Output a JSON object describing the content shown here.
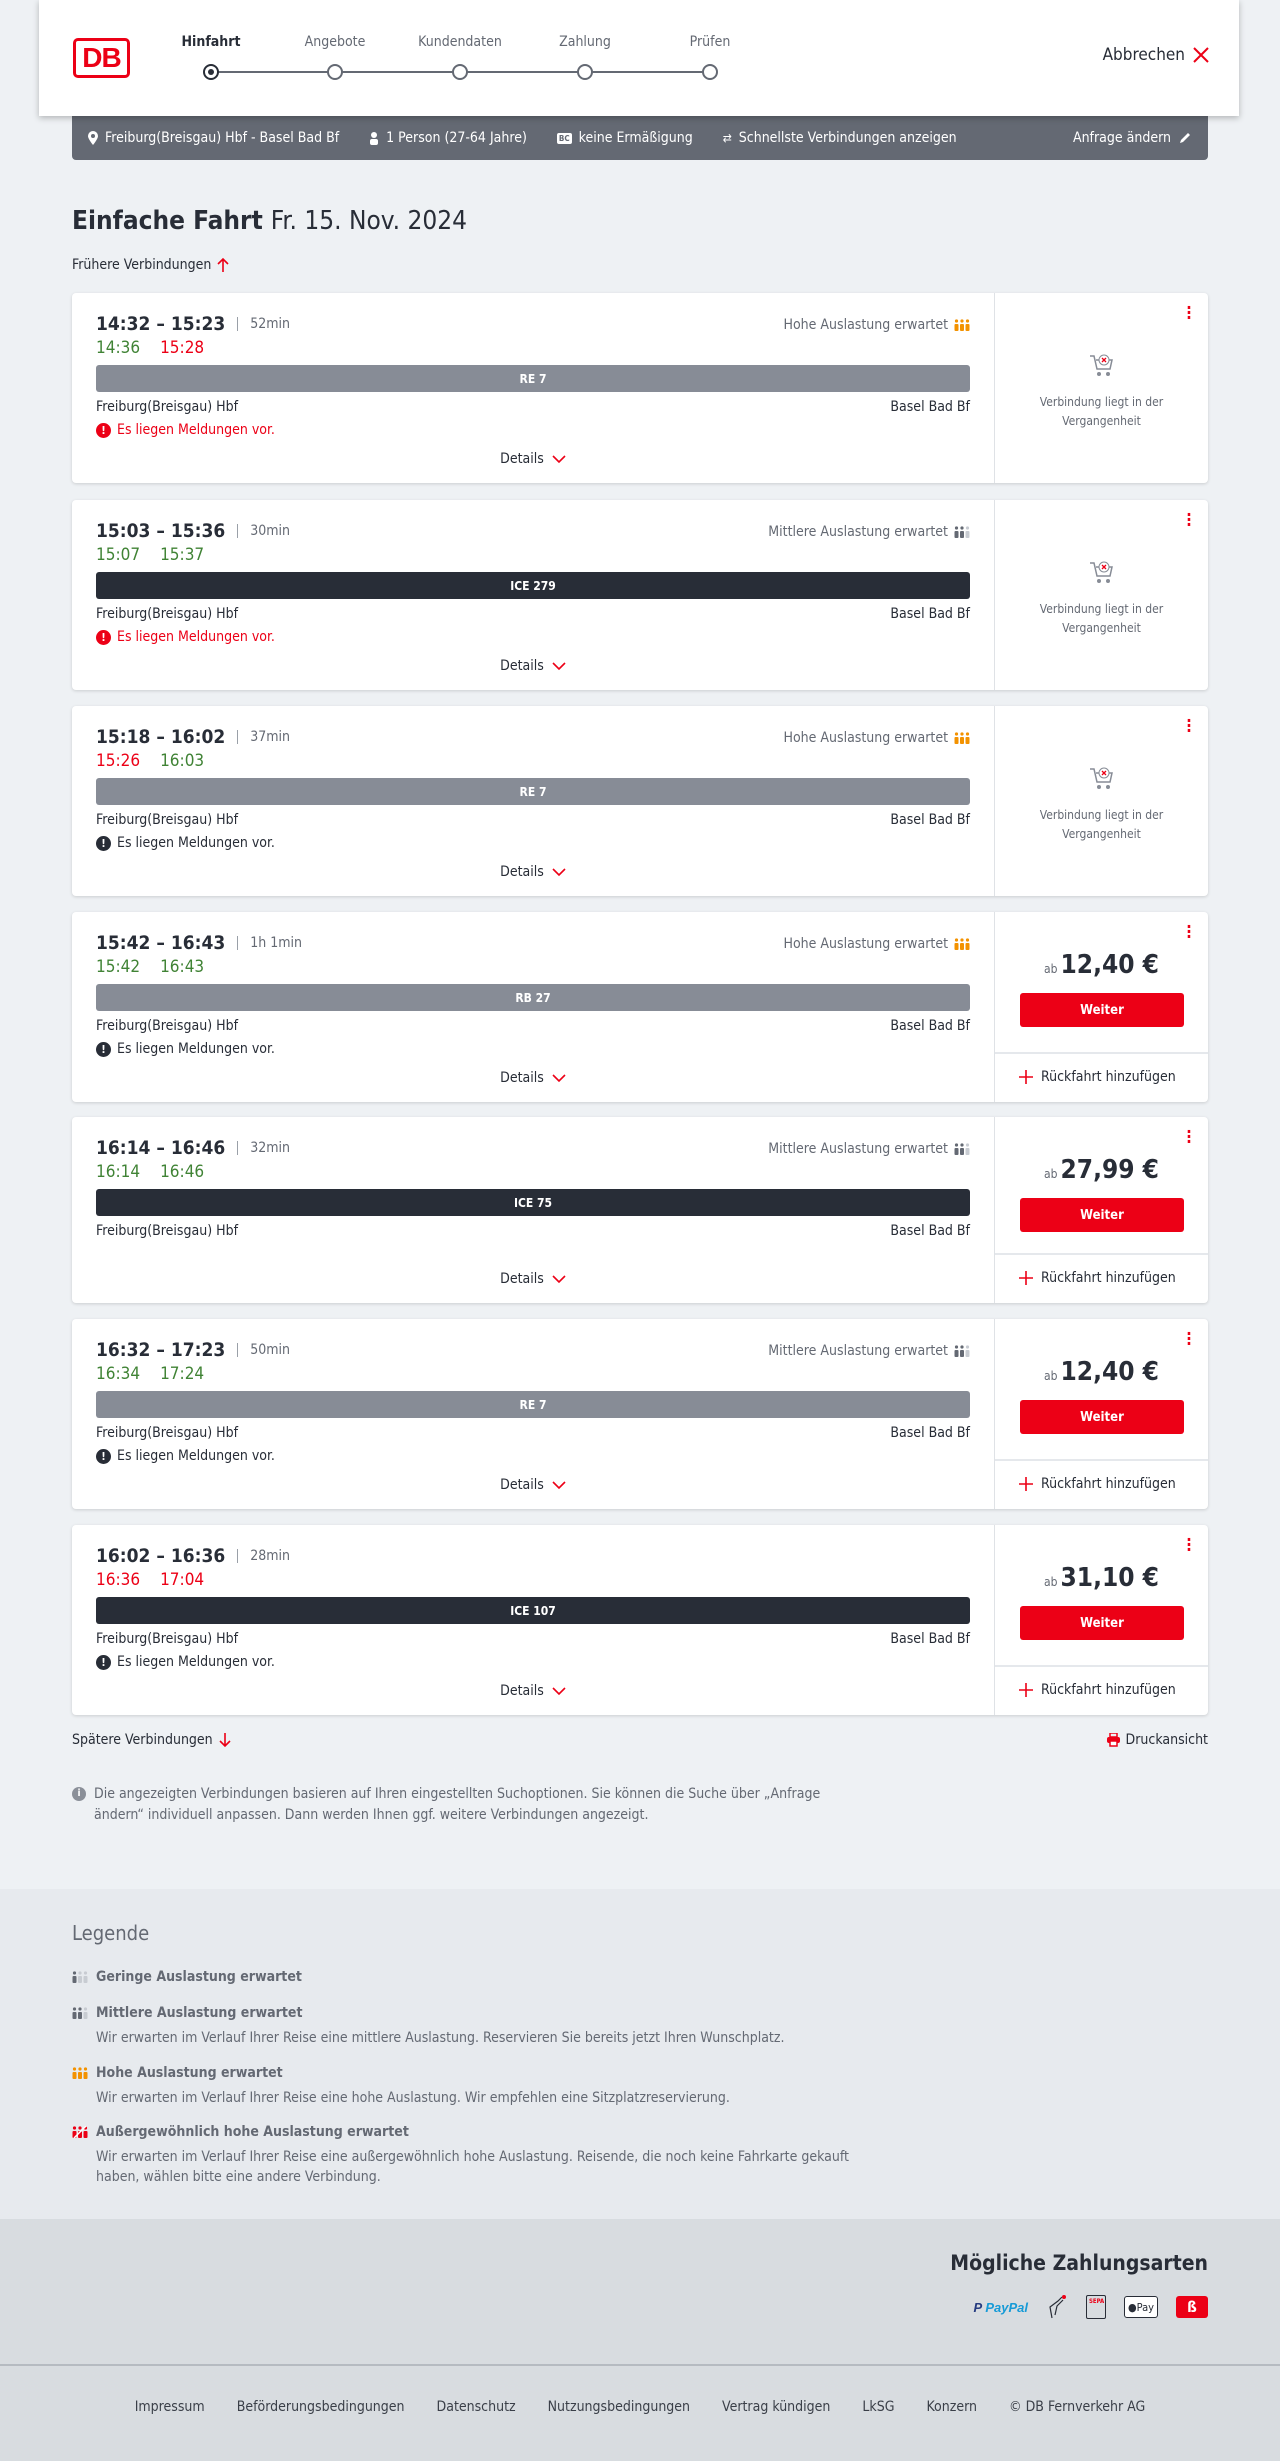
{
  "header": {
    "logo": "DB",
    "steps": [
      "Hinfahrt",
      "Angebote",
      "Kundendaten",
      "Zahlung",
      "Prüfen"
    ],
    "active_step": 0,
    "cancel": "Abbrechen"
  },
  "infobar": {
    "route": "Freiburg(Breisgau) Hbf - Basel Bad Bf",
    "travellers": "1 Person (27-64 Jahre)",
    "discount_badge": "BC",
    "discount": "keine Ermäßigung",
    "fastest": "Schnellste Verbindungen anzeigen",
    "change": "Anfrage ändern"
  },
  "title": {
    "type": "Einfache Fahrt",
    "date": "Fr. 15. Nov. 2024"
  },
  "earlier": "Frühere Verbindungen",
  "later": "Spätere Verbindungen",
  "print": "Druckansicht",
  "labels": {
    "details": "Details",
    "weiter": "Weiter",
    "return": "Rückfahrt hinzufügen",
    "past_line1": "Verbindung liegt in der",
    "past_line2": "Vergangenheit",
    "price_prefix": "ab",
    "from": "Freiburg(Breisgau) Hbf",
    "to": "Basel Bad Bf"
  },
  "colors": {
    "accent": "#ec0016",
    "on_time": "#408335",
    "late": "#ec0016",
    "regional_bar": "#878c96",
    "ice_bar": "#282d37",
    "load_high": "#f39200",
    "load_medium": "#646973"
  },
  "connections": [
    {
      "times": "14:32 – 15:23",
      "duration": "52min",
      "rt_dep": "14:36",
      "rt_dep_status": "on_time",
      "rt_arr": "15:28",
      "rt_arr_status": "late",
      "load": "Hohe Auslastung erwartet",
      "load_level": "high",
      "train": "RE 7",
      "train_type": "regional",
      "message": "Es liegen Meldungen vor.",
      "message_level": "warning",
      "past": true
    },
    {
      "times": "15:03 – 15:36",
      "duration": "30min",
      "rt_dep": "15:07",
      "rt_dep_status": "on_time",
      "rt_arr": "15:37",
      "rt_arr_status": "on_time",
      "load": "Mittlere Auslastung erwartet",
      "load_level": "medium",
      "train": "ICE 279",
      "train_type": "ice",
      "message": "Es liegen Meldungen vor.",
      "message_level": "warning",
      "past": true
    },
    {
      "times": "15:18 – 16:02",
      "duration": "37min",
      "rt_dep": "15:26",
      "rt_dep_status": "late",
      "rt_arr": "16:03",
      "rt_arr_status": "on_time",
      "load": "Hohe Auslastung erwartet",
      "load_level": "high",
      "train": "RE 7",
      "train_type": "regional",
      "message": "Es liegen Meldungen vor.",
      "message_level": "info",
      "past": true
    },
    {
      "times": "15:42 – 16:43",
      "duration": "1h 1min",
      "rt_dep": "15:42",
      "rt_dep_status": "on_time",
      "rt_arr": "16:43",
      "rt_arr_status": "on_time",
      "load": "Hohe Auslastung erwartet",
      "load_level": "high",
      "train": "RB 27",
      "train_type": "regional",
      "message": "Es liegen Meldungen vor.",
      "message_level": "info",
      "price": "12,40 €"
    },
    {
      "times": "16:14 – 16:46",
      "duration": "32min",
      "rt_dep": "16:14",
      "rt_dep_status": "on_time",
      "rt_arr": "16:46",
      "rt_arr_status": "on_time",
      "load": "Mittlere Auslastung erwartet",
      "load_level": "medium",
      "train": "ICE 75",
      "train_type": "ice",
      "price": "27,99 €"
    },
    {
      "times": "16:32 – 17:23",
      "duration": "50min",
      "rt_dep": "16:34",
      "rt_dep_status": "on_time",
      "rt_arr": "17:24",
      "rt_arr_status": "on_time",
      "load": "Mittlere Auslastung erwartet",
      "load_level": "medium",
      "train": "RE 7",
      "train_type": "regional",
      "message": "Es liegen Meldungen vor.",
      "message_level": "info",
      "price": "12,40 €"
    },
    {
      "times": "16:02 – 16:36",
      "duration": "28min",
      "rt_dep": "16:36",
      "rt_dep_status": "late",
      "rt_arr": "17:04",
      "rt_arr_status": "late",
      "train": "ICE 107",
      "train_type": "ice",
      "message": "Es liegen Meldungen vor.",
      "message_level": "info",
      "price": "31,10 €"
    }
  ],
  "note": "Die angezeigten Verbindungen basieren auf Ihren eingestellten Suchoptionen. Sie können die Suche über „Anfrage ändern“ individuell anpassen. Dann werden Ihnen ggf. weitere Verbindungen angezeigt.",
  "legend": {
    "title": "Legende",
    "items": [
      {
        "level": "low",
        "title": "Geringe Auslastung erwartet"
      },
      {
        "level": "medium",
        "title": "Mittlere Auslastung erwartet",
        "desc": "Wir erwarten im Verlauf Ihrer Reise eine mittlere Auslastung. Reservieren Sie bereits jetzt Ihren Wunschplatz."
      },
      {
        "level": "high",
        "title": "Hohe Auslastung erwartet",
        "desc": "Wir erwarten im Verlauf Ihrer Reise eine hohe Auslastung. Wir empfehlen eine Sitzplatzreservierung."
      },
      {
        "level": "extreme",
        "title": "Außergewöhnlich hohe Auslastung erwartet",
        "desc": "Wir erwarten im Verlauf Ihrer Reise eine außergewöhnlich hohe Auslastung. Reisende, die noch keine Fahrkarte gekauft haben, wählen bitte eine andere Verbindung."
      }
    ]
  },
  "payments": {
    "title": "Mögliche Zahlungsarten",
    "methods": [
      {
        "icon": "paypal-icon",
        "label": "PayPal"
      },
      {
        "icon": "credit-card-icon"
      },
      {
        "icon": "sepa-icon",
        "label": "SEPA"
      },
      {
        "icon": "apple-pay-icon",
        "label": "Pay"
      },
      {
        "icon": "db-bonus-icon"
      }
    ]
  },
  "footer_links": [
    "Impressum",
    "Beförderungsbedingungen",
    "Datenschutz",
    "Nutzungsbedingungen",
    "Vertrag kündigen",
    "LkSG",
    "Konzern",
    "© DB Fernverkehr AG"
  ]
}
